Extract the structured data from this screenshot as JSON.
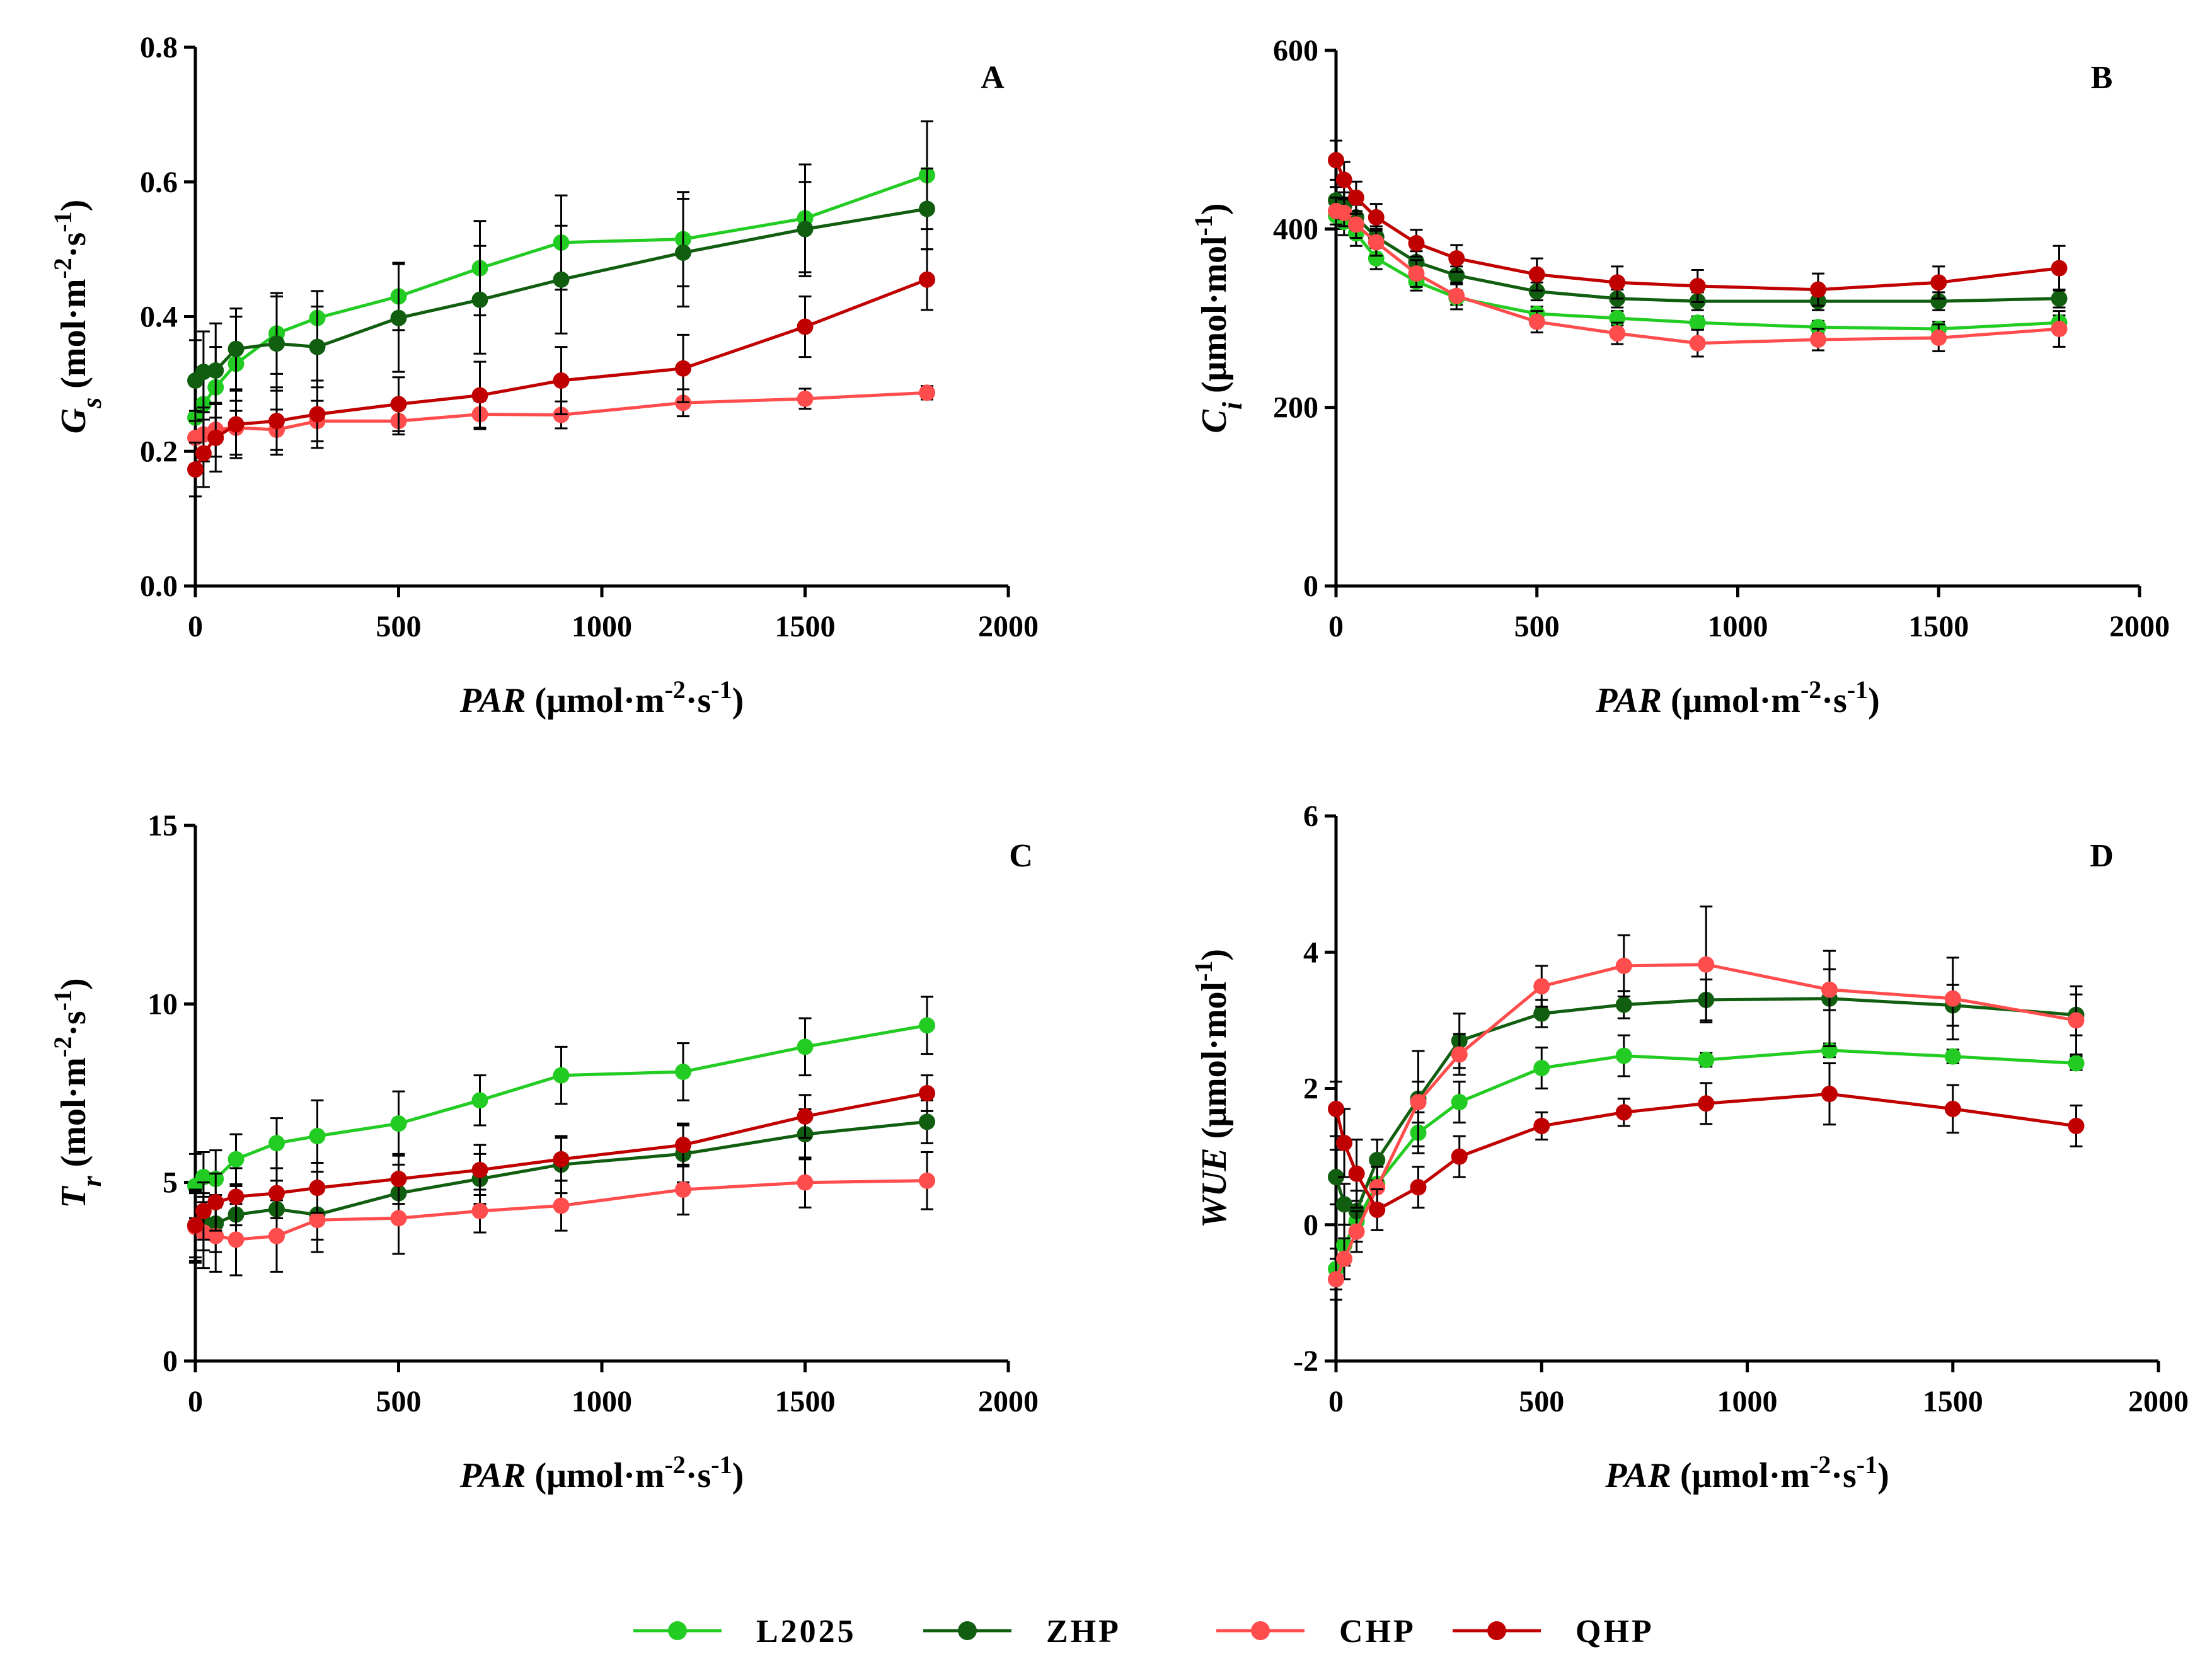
{
  "chart_data": [
    {
      "type": "line",
      "panel": "A",
      "title": "",
      "xlabel": "PAR (μmol·m-2·s-1)",
      "ylabel": "Gs (mol·m-2·s-1)",
      "xlim": [
        0,
        2000
      ],
      "ylim": [
        0,
        0.8
      ],
      "xticks": [
        "0",
        "500",
        "1000",
        "1500",
        "2000"
      ],
      "yticks": [
        "0.0",
        "0.2",
        "0.4",
        "0.6",
        "0.8"
      ],
      "x": [
        0,
        20,
        50,
        100,
        200,
        300,
        500,
        700,
        900,
        1200,
        1500,
        1800
      ],
      "series": [
        {
          "name": "L2025",
          "values": [
            0.25,
            0.27,
            0.295,
            0.33,
            0.375,
            0.398,
            0.43,
            0.472,
            0.51,
            0.515,
            0.546,
            0.61
          ],
          "errors": [
            0.05,
            0.05,
            0.06,
            0.07,
            0.06,
            0.04,
            0.05,
            0.07,
            0.07,
            0.07,
            0.08,
            0.08
          ]
        },
        {
          "name": "ZHP",
          "values": [
            0.305,
            0.318,
            0.32,
            0.352,
            0.36,
            0.355,
            0.398,
            0.425,
            0.455,
            0.495,
            0.53,
            0.56
          ],
          "errors": [
            0.06,
            0.06,
            0.07,
            0.06,
            0.07,
            0.06,
            0.08,
            0.08,
            0.08,
            0.08,
            0.07,
            0.06
          ]
        },
        {
          "name": "CHP",
          "values": [
            0.22,
            0.225,
            0.232,
            0.235,
            0.232,
            0.245,
            0.245,
            0.255,
            0.254,
            0.272,
            0.278,
            0.287
          ],
          "errors": [
            0.04,
            0.04,
            0.04,
            0.04,
            0.03,
            0.03,
            0.02,
            0.02,
            0.02,
            0.02,
            0.015,
            0.01
          ]
        },
        {
          "name": "QHP",
          "values": [
            0.173,
            0.197,
            0.22,
            0.24,
            0.245,
            0.255,
            0.27,
            0.283,
            0.305,
            0.323,
            0.385,
            0.455
          ],
          "errors": [
            0.04,
            0.05,
            0.05,
            0.05,
            0.05,
            0.05,
            0.04,
            0.05,
            0.05,
            0.05,
            0.045,
            0.045
          ]
        }
      ]
    },
    {
      "type": "line",
      "panel": "B",
      "title": "",
      "xlabel": "PAR (μmol·m-2·s-1)",
      "ylabel": "Ci (μmol·mol-1)",
      "xlim": [
        0,
        2000
      ],
      "ylim": [
        0,
        600
      ],
      "xticks": [
        "0",
        "500",
        "1000",
        "1500",
        "2000"
      ],
      "yticks": [
        "0",
        "200",
        "400",
        "600"
      ],
      "x": [
        0,
        20,
        50,
        100,
        200,
        300,
        500,
        700,
        900,
        1200,
        1500,
        1800
      ],
      "series": [
        {
          "name": "L2025",
          "values": [
            415,
            408,
            395,
            367,
            341,
            323,
            305,
            300,
            295,
            290,
            288,
            295
          ],
          "errors": [
            15,
            15,
            14,
            12,
            10,
            8,
            8,
            8,
            7,
            7,
            8,
            8
          ]
        },
        {
          "name": "ZHP",
          "values": [
            432,
            426,
            413,
            391,
            363,
            348,
            330,
            322,
            319,
            319,
            319,
            322
          ],
          "errors": [
            15,
            15,
            14,
            12,
            12,
            10,
            10,
            10,
            10,
            10,
            10,
            10
          ]
        },
        {
          "name": "CHP",
          "values": [
            420,
            418,
            405,
            385,
            350,
            325,
            296,
            283,
            272,
            276,
            278,
            288
          ],
          "errors": [
            15,
            15,
            15,
            15,
            15,
            15,
            12,
            12,
            15,
            12,
            15,
            20
          ]
        },
        {
          "name": "QHP",
          "values": [
            477,
            455,
            435,
            413,
            384,
            367,
            349,
            340,
            336,
            332,
            340,
            356
          ],
          "errors": [
            22,
            20,
            18,
            15,
            15,
            15,
            18,
            18,
            18,
            18,
            18,
            25
          ]
        }
      ]
    },
    {
      "type": "line",
      "panel": "C",
      "title": "",
      "xlabel": "PAR (μmol·m-2·s-1)",
      "ylabel": "Tr (mol·m-2·s-1)",
      "xlim": [
        0,
        2000
      ],
      "ylim": [
        0,
        15
      ],
      "xticks": [
        "0",
        "500",
        "1000",
        "1500",
        "2000"
      ],
      "yticks": [
        "0",
        "5",
        "10",
        "15"
      ],
      "x": [
        0,
        20,
        50,
        100,
        200,
        300,
        500,
        700,
        900,
        1200,
        1500,
        1800
      ],
      "series": [
        {
          "name": "L2025",
          "values": [
            4.9,
            5.15,
            5.1,
            5.65,
            6.1,
            6.3,
            6.65,
            7.3,
            8.0,
            8.1,
            8.8,
            9.4
          ],
          "errors": [
            0.9,
            0.7,
            0.8,
            0.7,
            0.7,
            1.0,
            0.9,
            0.7,
            0.8,
            0.8,
            0.8,
            0.8
          ]
        },
        {
          "name": "ZHP",
          "values": [
            3.8,
            3.9,
            3.85,
            4.1,
            4.25,
            4.1,
            4.7,
            5.1,
            5.5,
            5.8,
            6.35,
            6.7
          ],
          "errors": [
            1.0,
            0.8,
            0.8,
            0.8,
            0.8,
            0.7,
            0.8,
            0.7,
            0.8,
            0.8,
            0.7,
            0.6
          ]
        },
        {
          "name": "CHP",
          "values": [
            3.75,
            3.6,
            3.5,
            3.4,
            3.5,
            3.95,
            4.0,
            4.2,
            4.35,
            4.8,
            5.0,
            5.05
          ],
          "errors": [
            1.0,
            1.0,
            1.0,
            1.0,
            1.0,
            0.9,
            1.0,
            0.6,
            0.7,
            0.7,
            0.7,
            0.8
          ]
        },
        {
          "name": "QHP",
          "values": [
            3.8,
            4.2,
            4.45,
            4.6,
            4.7,
            4.85,
            5.1,
            5.35,
            5.65,
            6.05,
            6.85,
            7.5
          ],
          "errors": [
            0.9,
            0.8,
            0.8,
            0.8,
            0.7,
            0.7,
            0.7,
            0.7,
            0.6,
            0.6,
            0.6,
            0.5
          ]
        }
      ]
    },
    {
      "type": "line",
      "panel": "D",
      "title": "",
      "xlabel": "PAR (μmol·m-2·s-1)",
      "ylabel": "WUE (μmol·mol-1)",
      "xlim": [
        0,
        2000
      ],
      "ylim": [
        -2,
        6
      ],
      "xticks": [
        "0",
        "500",
        "1000",
        "1500",
        "2000"
      ],
      "yticks": [
        "-2",
        "0",
        "2",
        "4",
        "6"
      ],
      "x": [
        0,
        20,
        50,
        100,
        200,
        300,
        500,
        700,
        900,
        1200,
        1500,
        1800
      ],
      "series": [
        {
          "name": "L2025",
          "values": [
            -0.65,
            -0.3,
            0.05,
            0.6,
            1.35,
            1.8,
            2.3,
            2.48,
            2.42,
            2.56,
            2.47,
            2.37
          ],
          "errors": [
            0.3,
            0.3,
            0.3,
            0.3,
            0.3,
            0.3,
            0.3,
            0.3,
            0.1,
            0.1,
            0.1,
            0.1
          ]
        },
        {
          "name": "ZHP",
          "values": [
            0.7,
            0.3,
            0.2,
            0.95,
            1.85,
            2.7,
            3.1,
            3.23,
            3.3,
            3.32,
            3.22,
            3.08
          ],
          "errors": [
            0.4,
            0.3,
            0.3,
            0.3,
            0.7,
            0.4,
            0.2,
            0.2,
            0.3,
            0.7,
            0.3,
            0.3
          ]
        },
        {
          "name": "CHP",
          "values": [
            -0.8,
            -0.5,
            -0.1,
            0.55,
            1.8,
            2.5,
            3.5,
            3.8,
            3.82,
            3.45,
            3.32,
            3.0
          ],
          "errors": [
            0.3,
            0.3,
            0.3,
            0.3,
            0.3,
            0.3,
            0.3,
            0.45,
            0.85,
            0.3,
            0.6,
            0.5
          ]
        },
        {
          "name": "QHP",
          "values": [
            1.7,
            1.2,
            0.75,
            0.22,
            0.55,
            1.0,
            1.45,
            1.65,
            1.78,
            1.92,
            1.7,
            1.45
          ],
          "errors": [
            0.4,
            0.5,
            0.5,
            0.3,
            0.3,
            0.3,
            0.2,
            0.2,
            0.3,
            0.45,
            0.35,
            0.3
          ]
        }
      ]
    }
  ],
  "series_colors": {
    "L2025": "#22cc22",
    "ZHP": "#115e11",
    "CHP": "#ff4c4c",
    "QHP": "#c00000"
  },
  "legend": {
    "position": "bottom-center",
    "items": [
      {
        "name": "L2025",
        "label": "L2025"
      },
      {
        "name": "ZHP",
        "label": "ZHP"
      },
      {
        "name": "CHP",
        "label": "CHP"
      },
      {
        "name": "QHP",
        "label": "QHP"
      }
    ]
  }
}
